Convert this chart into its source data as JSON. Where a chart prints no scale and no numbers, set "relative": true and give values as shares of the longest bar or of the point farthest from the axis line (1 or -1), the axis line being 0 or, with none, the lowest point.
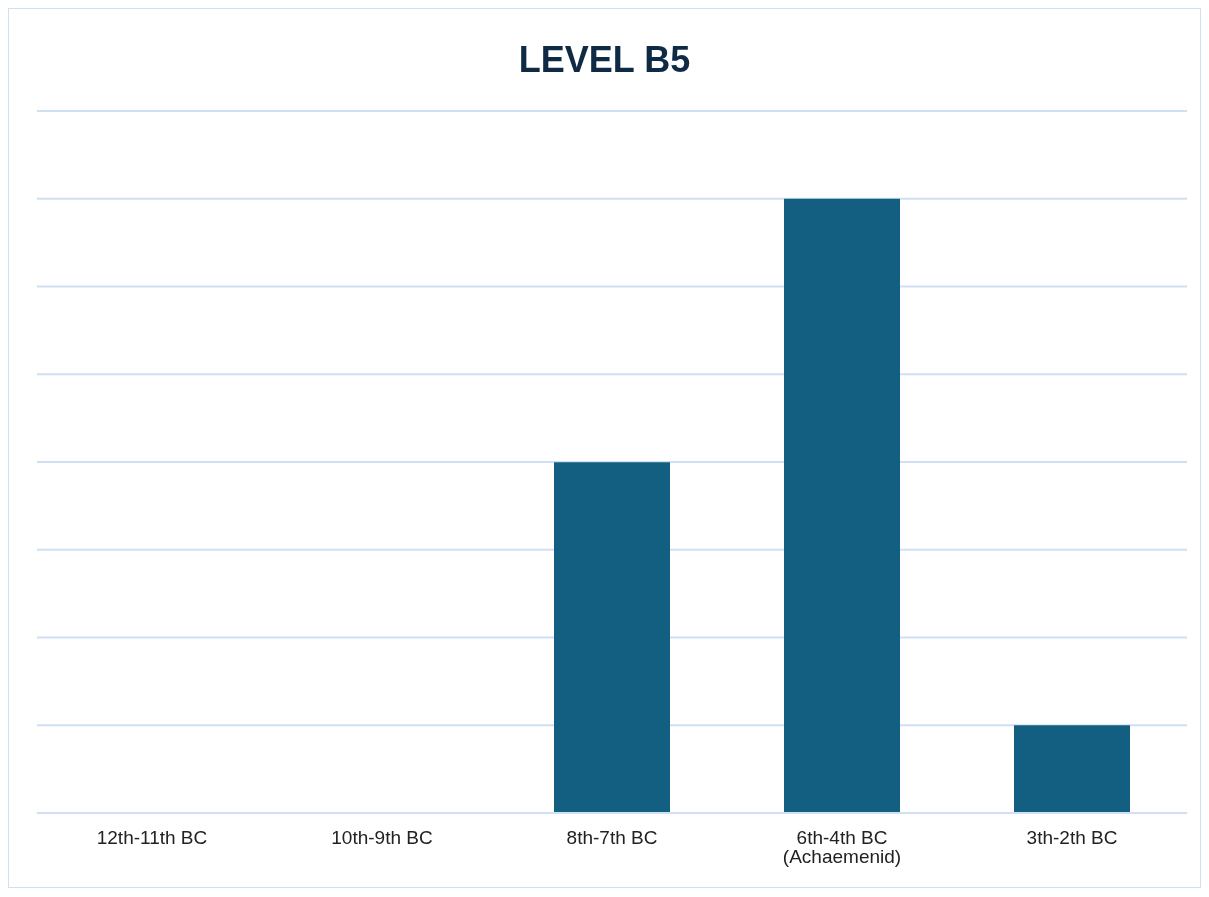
{
  "chart_data": {
    "type": "bar",
    "title": "LEVEL B5",
    "relative": true,
    "grid": "y",
    "legend": false,
    "categories": [
      "12th-11th BC",
      "10th-9th BC",
      "8th-7th BC",
      "6th-4th BC (Achaemenid)",
      "3th-2th BC"
    ],
    "values": [
      0,
      0,
      0.571,
      1,
      0.143
    ],
    "color": "#125f82"
  }
}
